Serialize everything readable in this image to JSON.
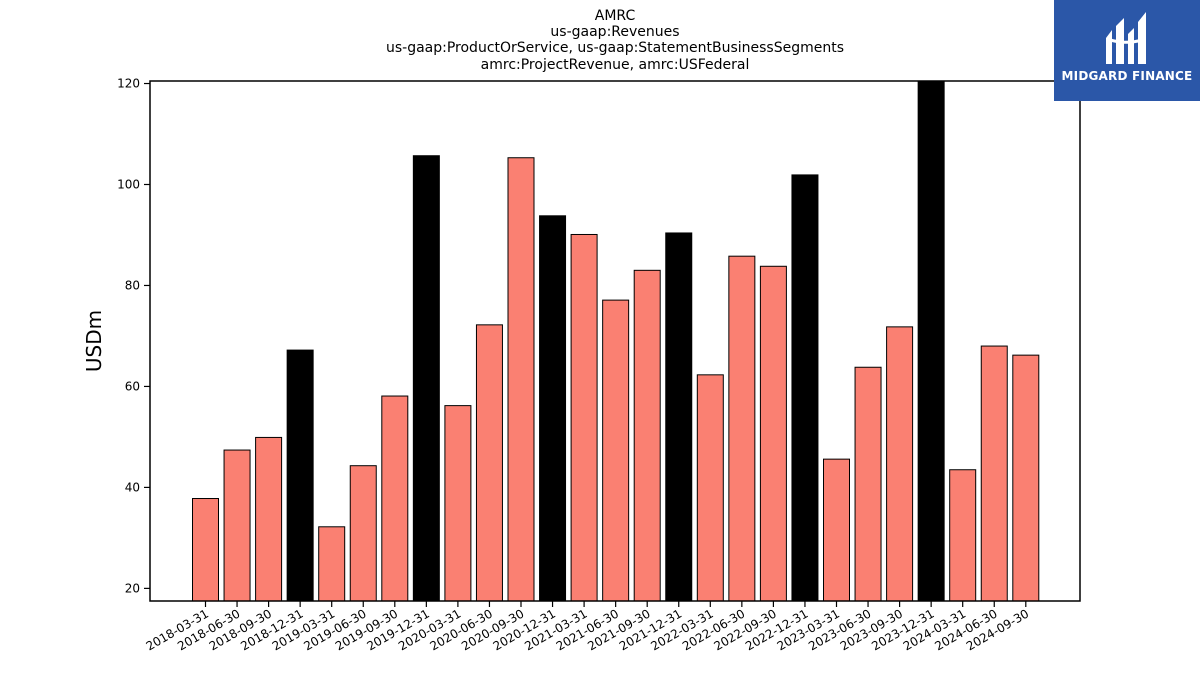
{
  "title_lines": [
    "AMRC",
    "us-gaap:Revenues",
    "us-gaap:ProductOrService, us-gaap:StatementBusinessSegments",
    "amrc:ProjectRevenue, amrc:USFederal"
  ],
  "logo": {
    "text": "MIDGARD FINANCE",
    "color": "#2b57a8"
  },
  "colors": {
    "regular": "#fa8072",
    "annual": "#000000",
    "edge": "#000000"
  },
  "chart_data": {
    "type": "bar",
    "title": "AMRC",
    "ylabel": "USDm",
    "xlabel": "",
    "ylim": [
      17.5,
      120.5
    ],
    "yticks": [
      20,
      40,
      60,
      80,
      100,
      120
    ],
    "grid": false,
    "categories": [
      "2018-03-31",
      "2018-06-30",
      "2018-09-30",
      "2018-12-31",
      "2019-03-31",
      "2019-06-30",
      "2019-09-30",
      "2019-12-31",
      "2020-03-31",
      "2020-06-30",
      "2020-09-30",
      "2020-12-31",
      "2021-03-31",
      "2021-06-30",
      "2021-09-30",
      "2021-12-31",
      "2022-03-31",
      "2022-06-30",
      "2022-09-30",
      "2022-12-31",
      "2023-03-31",
      "2023-06-30",
      "2023-09-30",
      "2023-12-31",
      "2024-03-31",
      "2024-06-30",
      "2024-09-30"
    ],
    "values": [
      37.8,
      47.4,
      49.9,
      67.2,
      32.2,
      44.3,
      58.1,
      105.7,
      56.2,
      72.2,
      105.3,
      93.8,
      90.1,
      77.1,
      83.0,
      90.4,
      62.3,
      85.8,
      83.8,
      101.9,
      45.6,
      63.8,
      71.8,
      121.0,
      43.5,
      68.0,
      66.2
    ],
    "highlight": [
      false,
      false,
      false,
      true,
      false,
      false,
      false,
      true,
      false,
      false,
      false,
      true,
      false,
      false,
      false,
      true,
      false,
      false,
      false,
      true,
      false,
      false,
      false,
      true,
      false,
      false,
      false
    ]
  }
}
